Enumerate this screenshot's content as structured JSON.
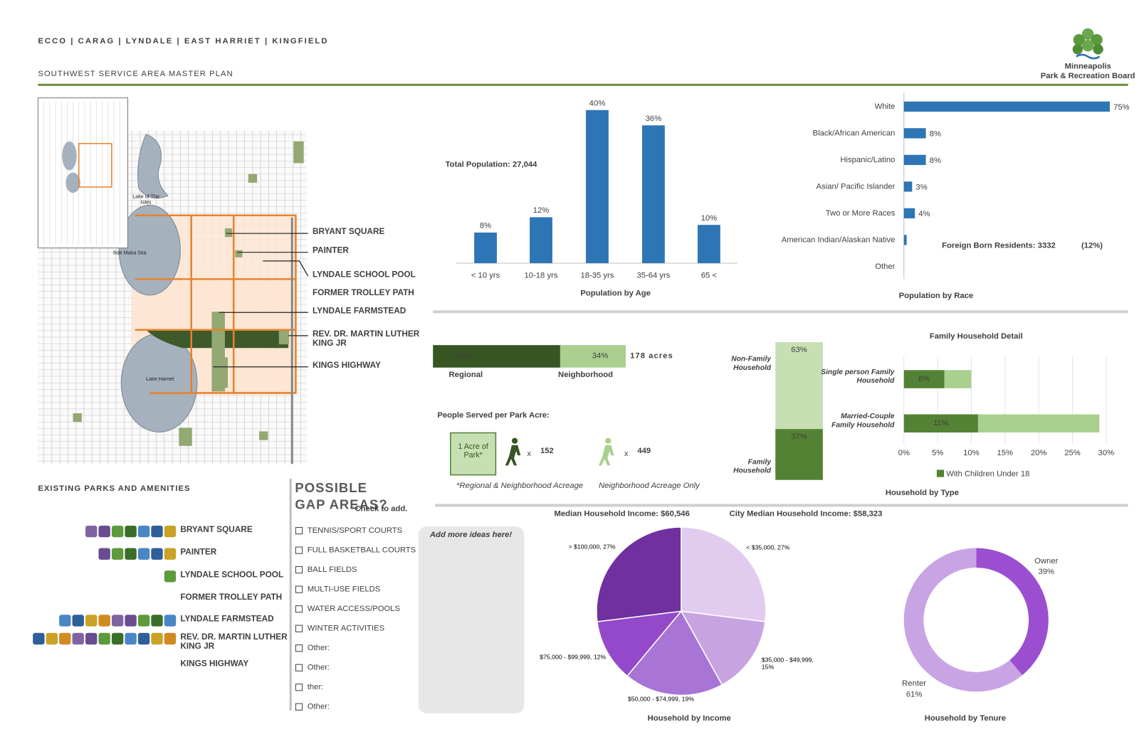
{
  "header": {
    "title": "ECCO | CARAG | LYNDALE | EAST HARRIET | KINGFIELD",
    "subtitle": "SOUTHWEST SERVICE AREA MASTER PLAN",
    "logo": [
      "Minneapolis",
      "Park & Recreation Board"
    ]
  },
  "map": {
    "lakes": [
      "Lake of The Isles",
      "Bde Maka Ska",
      "Lake Harriet"
    ],
    "labels": [
      "BRYANT SQUARE",
      "PAINTER",
      "LYNDALE SCHOOL POOL",
      "FORMER TROLLEY PATH",
      "LYNDALE FARMSTEAD",
      "REV. DR. MARTIN LUTHER KING JR",
      "KINGS HIGHWAY"
    ]
  },
  "existing_parks": {
    "title": "EXISTING PARKS AND AMENITIES",
    "parks": [
      "BRYANT SQUARE",
      "PAINTER",
      "LYNDALE SCHOOL POOL",
      "FORMER TROLLEY PATH",
      "LYNDALE FARMSTEAD",
      "REV. DR. MARTIN LUTHER KING JR",
      "KINGS HIGHWAY"
    ]
  },
  "gap_areas": {
    "title": "POSSIBLE GAP AREAS?",
    "hint": "Check to add.",
    "items": [
      "TENNIS/SPORT COURTS",
      "FULL BASKETBALL COURTS",
      "BALL FIELDS",
      "MULTI-USE FIELDS",
      "WATER ACCESS/POOLS",
      "WINTER ACTIVITIES",
      "Other:",
      "Other:",
      "ther:",
      "Other:"
    ]
  },
  "ideas_box": {
    "label": "Add more ideas here!"
  },
  "people_served": {
    "title": "People Served per Park Acre:",
    "acre_box": "1 Acre of Park*",
    "multiplier": "x",
    "regional": {
      "value": 152,
      "note": "*Regional & Neighborhood Acreage"
    },
    "neighborhood": {
      "value": 449,
      "note": "Neighborhood Acreage Only"
    }
  },
  "chart_data": [
    {
      "type": "bar",
      "title": "Population by Age",
      "annotation": "Total Population: 27,044",
      "categories": [
        "< 10 yrs",
        "10-18 yrs",
        "18-35 yrs",
        "35-64 yrs",
        "65 <"
      ],
      "values": [
        8,
        12,
        40,
        36,
        10
      ],
      "value_labels": [
        "8%",
        "12%",
        "40%",
        "36%",
        "10%"
      ],
      "color": "#2e75b6"
    },
    {
      "type": "hbar",
      "title": "Population by Race",
      "annotation": "Foreign Born Residents: 3332",
      "annotation_note": "(12%)",
      "categories": [
        "White",
        "Black/African American",
        "Hispanic/Latino",
        "Asian/ Pacific Islander",
        "Two or More Races",
        "American Indian/Alaskan Native",
        "Other"
      ],
      "values": [
        75,
        8,
        8,
        3,
        4,
        1,
        0
      ],
      "value_labels": [
        "75%",
        "8%",
        "8%",
        "3%",
        "4%",
        null,
        null
      ],
      "color": "#2e75b6"
    },
    {
      "type": "stacked_hbar",
      "annotation": "178 acres",
      "series": [
        {
          "name": "Regional",
          "color": "#375623",
          "values": [
            66
          ],
          "value_labels": [
            "66%"
          ]
        },
        {
          "name": "Neighborhood",
          "color": "#a9d08e",
          "values": [
            34
          ],
          "value_labels": [
            "34%"
          ]
        }
      ]
    },
    {
      "type": "stacked_column",
      "title": "Household by Type",
      "series": [
        {
          "name": "Family Household",
          "color": "#548235",
          "values": [
            37
          ],
          "value_labels": [
            "37%"
          ]
        },
        {
          "name": "Non-Family Household",
          "color": "#c6e0b4",
          "values": [
            63
          ],
          "value_labels": [
            "63%"
          ]
        }
      ]
    },
    {
      "type": "stacked_hbar_axis",
      "title": "Family Household Detail",
      "categories": [
        "Single person Family Household",
        "Married-Couple Family Household"
      ],
      "series": [
        {
          "name": "With Children Under 18",
          "color": "#548235",
          "values": [
            6,
            11
          ],
          "value_labels": [
            "6%",
            "11%"
          ]
        },
        {
          "color": "#a9d08e",
          "values": [
            4,
            18
          ]
        }
      ],
      "xlim": [
        0,
        30
      ],
      "xticks": [
        {
          "value": 0,
          "label": "0%"
        },
        {
          "value": 5,
          "label": "5%"
        },
        {
          "value": 10,
          "label": "10%"
        },
        {
          "value": 15,
          "label": "15%"
        },
        {
          "value": 20,
          "label": "20%"
        },
        {
          "value": 25,
          "label": "25%"
        },
        {
          "value": 30,
          "label": "30%"
        }
      ],
      "grid": true
    },
    {
      "type": "pie",
      "title": "Household by Income",
      "headline": "Median Household Income: $60,546",
      "comparison": "City Median Household Income: $58,323",
      "categories": [
        "< $35,000, 27%",
        "$35,000 - $49,999, 15%",
        "$50,000 - $74,999, 19%",
        "$75,000 - $99,999, 12%",
        "> $100,000, 27%"
      ],
      "values": [
        27,
        15,
        19,
        12,
        27
      ],
      "colors": [
        "#e1cbee",
        "#c7a4e1",
        "#a874d5",
        "#9349c9",
        "#7030a0"
      ]
    },
    {
      "type": "donut",
      "title": "Household by Tenure",
      "categories": [
        "Owner",
        "Renter"
      ],
      "values": [
        39,
        61
      ],
      "value_labels": [
        "39%",
        "61%"
      ],
      "colors": [
        "#9b4fd0",
        "#c9a4e4"
      ]
    }
  ]
}
